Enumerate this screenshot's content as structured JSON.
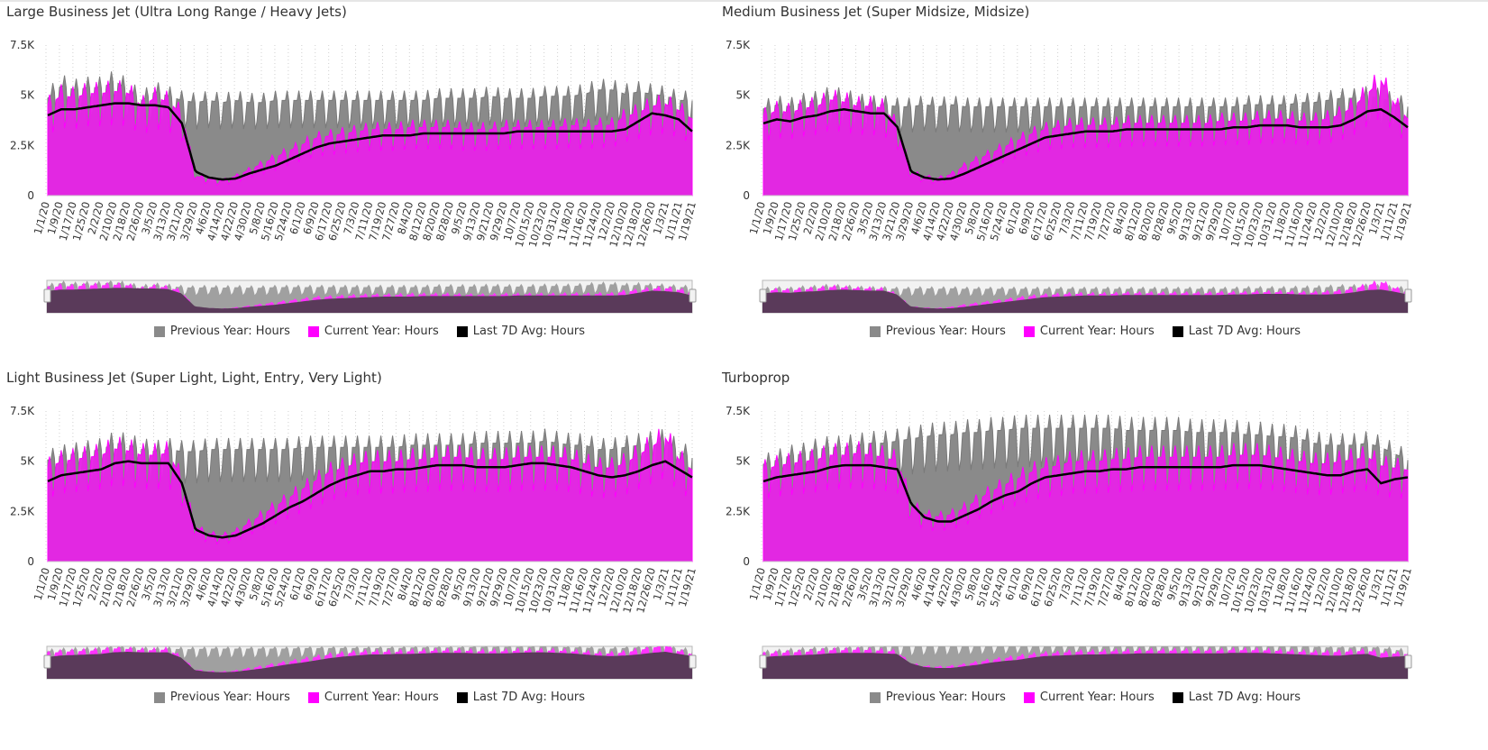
{
  "colors": {
    "previous": "#8a8a8a",
    "current": "#e525e5",
    "avg": "#000000",
    "nav_background": "#f2f2f2",
    "nav_mask": "#5a3a5a"
  },
  "legend": {
    "previous": "Previous Year: Hours",
    "current": "Current Year: Hours",
    "avg": "Last 7D Avg: Hours"
  },
  "chart_data": [
    {
      "type": "area",
      "title": "Large Business Jet (Ultra Long Range / Heavy Jets)",
      "y_ticks": [
        "0",
        "2.5K",
        "5K",
        "7.5K"
      ],
      "ylim": [
        0,
        7500
      ],
      "x_tick_labels": [
        "1/1/20",
        "1/9/20",
        "1/17/20",
        "1/25/20",
        "2/2/20",
        "2/10/20",
        "2/18/20",
        "2/26/20",
        "3/5/20",
        "3/13/20",
        "3/21/20",
        "3/29/20",
        "4/6/20",
        "4/14/20",
        "4/22/20",
        "4/30/20",
        "5/8/20",
        "5/16/20",
        "5/24/20",
        "6/1/20",
        "6/9/20",
        "6/17/20",
        "6/25/20",
        "7/3/20",
        "7/11/20",
        "7/19/20",
        "7/27/20",
        "8/4/20",
        "8/12/20",
        "8/20/20",
        "8/28/20",
        "9/5/20",
        "9/13/20",
        "9/21/20",
        "9/29/20",
        "10/7/20",
        "10/15/20",
        "10/23/20",
        "10/31/20",
        "11/8/20",
        "11/16/20",
        "11/24/20",
        "12/2/20",
        "12/10/20",
        "12/18/20",
        "12/26/20",
        "1/3/21",
        "1/11/21",
        "1/19/21"
      ],
      "series": [
        {
          "name": "Previous Year: Hours",
          "values": [
            4600,
            5200,
            5000,
            5100,
            5100,
            5400,
            5000,
            4500,
            4900,
            4700,
            4500,
            4400,
            4500,
            4400,
            4500,
            4400,
            4400,
            4500,
            4500,
            4500,
            4500,
            4500,
            4500,
            4500,
            4500,
            4500,
            4500,
            4500,
            4500,
            4600,
            4600,
            4600,
            4600,
            4700,
            4600,
            4600,
            4600,
            4700,
            4700,
            4700,
            4800,
            5000,
            5000,
            4800,
            4900,
            4800,
            4700,
            4500,
            4500
          ]
        },
        {
          "name": "Current Year: Hours",
          "values": [
            4200,
            4700,
            4600,
            4800,
            4800,
            4900,
            4800,
            4200,
            4600,
            4400,
            3800,
            900,
            800,
            700,
            900,
            1200,
            1500,
            1800,
            2100,
            2400,
            2700,
            2800,
            2900,
            3000,
            3100,
            3100,
            3100,
            3200,
            3200,
            3200,
            3200,
            3100,
            3100,
            3100,
            3200,
            3200,
            3200,
            3200,
            3200,
            3300,
            3200,
            3300,
            3300,
            3700,
            3900,
            4200,
            4300,
            4000,
            3600
          ]
        },
        {
          "name": "Last 7D Avg: Hours",
          "values": [
            4000,
            4300,
            4300,
            4400,
            4500,
            4600,
            4600,
            4500,
            4500,
            4400,
            3600,
            1200,
            900,
            800,
            850,
            1100,
            1300,
            1500,
            1800,
            2100,
            2400,
            2600,
            2700,
            2800,
            2900,
            3000,
            3000,
            3000,
            3100,
            3100,
            3100,
            3100,
            3100,
            3100,
            3100,
            3200,
            3200,
            3200,
            3200,
            3200,
            3200,
            3200,
            3200,
            3300,
            3700,
            4100,
            4000,
            3800,
            3200
          ]
        }
      ]
    },
    {
      "type": "area",
      "title": "Medium Business Jet (Super Midsize, Midsize)",
      "y_ticks": [
        "0",
        "2.5K",
        "5K",
        "7.5K"
      ],
      "ylim": [
        0,
        7500
      ],
      "x_tick_labels": [
        "1/1/20",
        "1/9/20",
        "1/17/20",
        "1/25/20",
        "2/2/20",
        "2/10/20",
        "2/18/20",
        "2/26/20",
        "3/5/20",
        "3/13/20",
        "3/21/20",
        "3/29/20",
        "4/6/20",
        "4/14/20",
        "4/22/20",
        "4/30/20",
        "5/8/20",
        "5/16/20",
        "5/24/20",
        "6/1/20",
        "6/9/20",
        "6/17/20",
        "6/25/20",
        "7/3/20",
        "7/11/20",
        "7/19/20",
        "7/27/20",
        "8/4/20",
        "8/12/20",
        "8/20/20",
        "8/28/20",
        "9/5/20",
        "9/13/20",
        "9/21/20",
        "9/29/20",
        "10/7/20",
        "10/15/20",
        "10/23/20",
        "10/31/20",
        "11/8/20",
        "11/16/20",
        "11/24/20",
        "12/2/20",
        "12/10/20",
        "12/18/20",
        "12/26/20",
        "1/3/21",
        "1/11/21",
        "1/19/21"
      ],
      "series": [
        {
          "name": "Previous Year: Hours",
          "values": [
            4100,
            4300,
            4200,
            4400,
            4500,
            4700,
            4600,
            4400,
            4300,
            4300,
            4200,
            4200,
            4300,
            4200,
            4300,
            4200,
            4200,
            4200,
            4200,
            4200,
            4200,
            4200,
            4200,
            4200,
            4200,
            4200,
            4200,
            4200,
            4200,
            4200,
            4200,
            4200,
            4200,
            4200,
            4200,
            4200,
            4300,
            4300,
            4300,
            4300,
            4400,
            4400,
            4500,
            4600,
            4600,
            4700,
            4600,
            4400,
            4200
          ]
        },
        {
          "name": "Current Year: Hours",
          "values": [
            3700,
            4000,
            3900,
            4100,
            4200,
            4500,
            4400,
            4200,
            4200,
            4100,
            3200,
            1100,
            900,
            800,
            1000,
            1400,
            1700,
            2000,
            2300,
            2600,
            2900,
            3100,
            3200,
            3300,
            3300,
            3300,
            3300,
            3400,
            3400,
            3400,
            3400,
            3400,
            3400,
            3400,
            3500,
            3500,
            3500,
            3600,
            3600,
            3600,
            3500,
            3500,
            3600,
            3800,
            4200,
            4800,
            5400,
            4300,
            3600
          ]
        },
        {
          "name": "Last 7D Avg: Hours",
          "values": [
            3600,
            3800,
            3700,
            3900,
            4000,
            4200,
            4300,
            4200,
            4100,
            4100,
            3400,
            1200,
            900,
            800,
            850,
            1100,
            1400,
            1700,
            2000,
            2300,
            2600,
            2900,
            3000,
            3100,
            3200,
            3200,
            3200,
            3300,
            3300,
            3300,
            3300,
            3300,
            3300,
            3300,
            3300,
            3400,
            3400,
            3500,
            3500,
            3500,
            3400,
            3400,
            3400,
            3500,
            3800,
            4200,
            4300,
            3900,
            3400
          ]
        }
      ]
    },
    {
      "type": "area",
      "title": "Light Business Jet (Super Light, Light, Entry, Very Light)",
      "y_ticks": [
        "0",
        "2.5K",
        "5K",
        "7.5K"
      ],
      "ylim": [
        0,
        7500
      ],
      "x_tick_labels": [
        "1/1/20",
        "1/9/20",
        "1/17/20",
        "1/25/20",
        "2/2/20",
        "2/10/20",
        "2/18/20",
        "2/26/20",
        "3/5/20",
        "3/13/20",
        "3/21/20",
        "3/29/20",
        "4/6/20",
        "4/14/20",
        "4/22/20",
        "4/30/20",
        "5/8/20",
        "5/16/20",
        "5/24/20",
        "6/1/20",
        "6/9/20",
        "6/17/20",
        "6/25/20",
        "7/3/20",
        "7/11/20",
        "7/19/20",
        "7/27/20",
        "8/4/20",
        "8/12/20",
        "8/20/20",
        "8/28/20",
        "9/5/20",
        "9/13/20",
        "9/21/20",
        "9/29/20",
        "10/7/20",
        "10/15/20",
        "10/23/20",
        "10/31/20",
        "11/8/20",
        "11/16/20",
        "11/24/20",
        "12/2/20",
        "12/10/20",
        "12/18/20",
        "12/26/20",
        "1/3/21",
        "1/11/21",
        "1/19/21"
      ],
      "series": [
        {
          "name": "Previous Year: Hours",
          "values": [
            4800,
            5000,
            5100,
            5200,
            5300,
            5600,
            5500,
            5300,
            5200,
            5300,
            5200,
            5200,
            5300,
            5300,
            5300,
            5300,
            5300,
            5300,
            5300,
            5400,
            5400,
            5400,
            5400,
            5400,
            5400,
            5400,
            5400,
            5500,
            5500,
            5500,
            5500,
            5500,
            5600,
            5600,
            5600,
            5600,
            5600,
            5700,
            5600,
            5500,
            5500,
            5300,
            5300,
            5400,
            5500,
            5600,
            5700,
            5200,
            4900
          ]
        },
        {
          "name": "Current Year: Hours",
          "values": [
            4400,
            4700,
            4800,
            4900,
            5000,
            5300,
            5200,
            5000,
            5000,
            5100,
            3800,
            1600,
            1300,
            1200,
            1400,
            1800,
            2200,
            2600,
            3000,
            3400,
            3800,
            4200,
            4400,
            4600,
            4700,
            4700,
            4700,
            4800,
            4800,
            4900,
            4900,
            4900,
            4800,
            4800,
            4800,
            4900,
            4900,
            4900,
            4900,
            4800,
            4600,
            4400,
            4400,
            4600,
            5000,
            5400,
            5800,
            4800,
            4300
          ]
        },
        {
          "name": "Last 7D Avg: Hours",
          "values": [
            4000,
            4300,
            4400,
            4500,
            4600,
            4900,
            5000,
            4900,
            4900,
            4900,
            3900,
            1600,
            1300,
            1200,
            1300,
            1600,
            1900,
            2300,
            2700,
            3000,
            3400,
            3800,
            4100,
            4300,
            4500,
            4500,
            4600,
            4600,
            4700,
            4800,
            4800,
            4800,
            4700,
            4700,
            4700,
            4800,
            4900,
            4900,
            4800,
            4700,
            4500,
            4300,
            4200,
            4300,
            4500,
            4800,
            5000,
            4600,
            4200
          ]
        }
      ]
    },
    {
      "type": "area",
      "title": "Turboprop",
      "y_ticks": [
        "0",
        "2.5K",
        "5K",
        "7.5K"
      ],
      "ylim": [
        0,
        7500
      ],
      "x_tick_labels": [
        "1/1/20",
        "1/9/20",
        "1/17/20",
        "1/25/20",
        "2/2/20",
        "2/10/20",
        "2/18/20",
        "2/26/20",
        "3/5/20",
        "3/13/20",
        "3/21/20",
        "3/29/20",
        "4/6/20",
        "4/14/20",
        "4/22/20",
        "4/30/20",
        "5/8/20",
        "5/16/20",
        "5/24/20",
        "6/1/20",
        "6/9/20",
        "6/17/20",
        "6/25/20",
        "7/3/20",
        "7/11/20",
        "7/19/20",
        "7/27/20",
        "8/4/20",
        "8/12/20",
        "8/20/20",
        "8/28/20",
        "9/5/20",
        "9/13/20",
        "9/21/20",
        "9/29/20",
        "10/7/20",
        "10/15/20",
        "10/23/20",
        "10/31/20",
        "11/8/20",
        "11/16/20",
        "11/24/20",
        "12/2/20",
        "12/10/20",
        "12/18/20",
        "12/26/20",
        "1/3/21",
        "1/11/21",
        "1/19/21"
      ],
      "series": [
        {
          "name": "Previous Year: Hours",
          "values": [
            4600,
            4800,
            5000,
            5100,
            5300,
            5400,
            5400,
            5500,
            5600,
            5600,
            5700,
            5800,
            5900,
            6000,
            6000,
            6100,
            6100,
            6200,
            6200,
            6300,
            6300,
            6300,
            6300,
            6300,
            6300,
            6300,
            6300,
            6200,
            6200,
            6200,
            6200,
            6200,
            6100,
            6100,
            6100,
            6100,
            6000,
            6000,
            5900,
            5900,
            5800,
            5600,
            5500,
            5500,
            5500,
            5600,
            5400,
            5100,
            4800
          ]
        },
        {
          "name": "Current Year: Hours",
          "values": [
            4300,
            4500,
            4600,
            4700,
            4800,
            5000,
            5000,
            5100,
            5000,
            4900,
            4700,
            2700,
            2200,
            2100,
            2200,
            2500,
            2900,
            3300,
            3600,
            3900,
            4200,
            4400,
            4500,
            4700,
            4700,
            4700,
            4800,
            4800,
            4900,
            4900,
            4900,
            4900,
            4900,
            4900,
            4900,
            5000,
            5000,
            5000,
            4900,
            4800,
            4700,
            4600,
            4600,
            4700,
            4800,
            4900,
            4500,
            4400,
            4300
          ]
        },
        {
          "name": "Last 7D Avg: Hours",
          "values": [
            4000,
            4200,
            4300,
            4400,
            4500,
            4700,
            4800,
            4800,
            4800,
            4700,
            4600,
            2900,
            2200,
            2000,
            2000,
            2300,
            2600,
            3000,
            3300,
            3500,
            3900,
            4200,
            4300,
            4400,
            4500,
            4500,
            4600,
            4600,
            4700,
            4700,
            4700,
            4700,
            4700,
            4700,
            4700,
            4800,
            4800,
            4800,
            4700,
            4600,
            4500,
            4400,
            4300,
            4300,
            4500,
            4600,
            3900,
            4100,
            4200
          ]
        }
      ]
    }
  ]
}
